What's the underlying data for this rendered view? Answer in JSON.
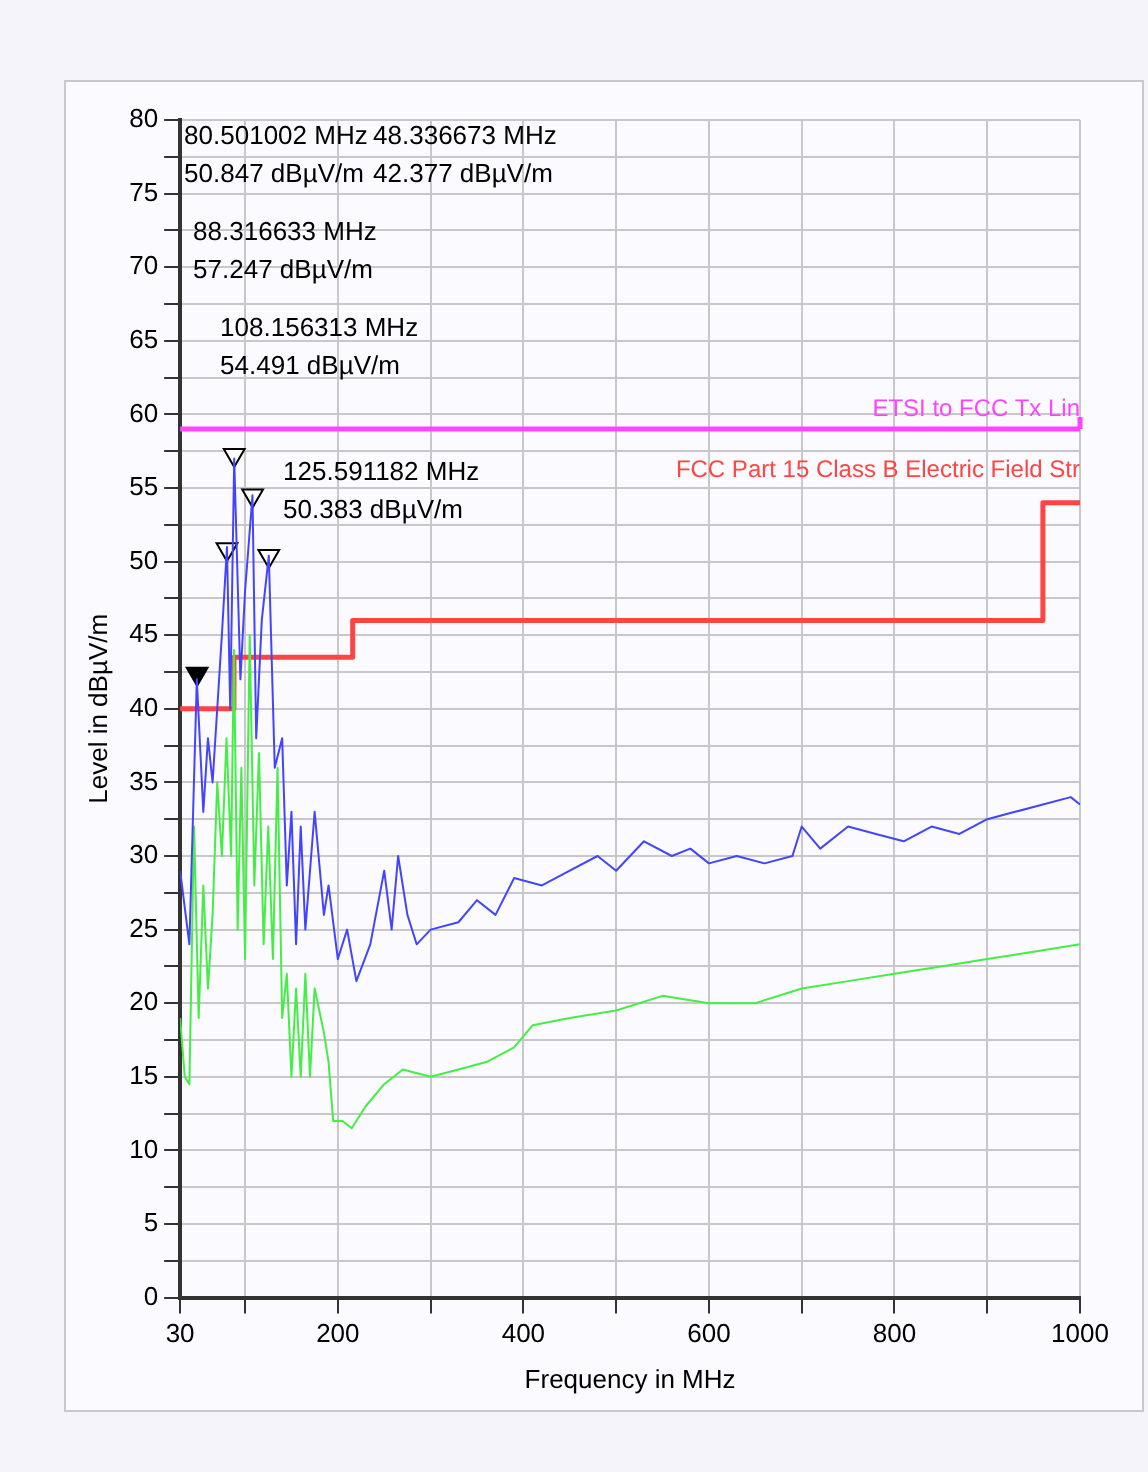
{
  "chart_data": {
    "type": "line",
    "xlabel": "Frequency in MHz",
    "ylabel": "Level in dBµV/m",
    "xlim": [
      30,
      1000
    ],
    "xticks": [
      30,
      {
        "value": 100,
        "label": null
      },
      200,
      {
        "value": 300,
        "label": null
      },
      400,
      {
        "value": 500,
        "label": null
      },
      600,
      {
        "value": 700,
        "label": null
      },
      800,
      {
        "value": 900,
        "label": null
      },
      1000
    ],
    "ylim": [
      0,
      80
    ],
    "yticks": [
      0,
      {
        "value": 2.5,
        "label": null
      },
      5,
      {
        "value": 7.5,
        "label": null
      },
      10,
      {
        "value": 12.5,
        "label": null
      },
      15,
      {
        "value": 17.5,
        "label": null
      },
      20,
      {
        "value": 22.5,
        "label": null
      },
      25,
      {
        "value": 27.5,
        "label": null
      },
      30,
      {
        "value": 32.5,
        "label": null
      },
      35,
      {
        "value": 37.5,
        "label": null
      },
      40,
      {
        "value": 42.5,
        "label": null
      },
      45,
      {
        "value": 47.5,
        "label": null
      },
      50,
      {
        "value": 52.5,
        "label": null
      },
      55,
      {
        "value": 57.5,
        "label": null
      },
      60,
      {
        "value": 62.5,
        "label": null
      },
      65,
      {
        "value": 67.5,
        "label": null
      },
      70,
      {
        "value": 72.5,
        "label": null
      },
      75,
      {
        "value": 77.5,
        "label": null
      },
      80
    ],
    "grid": true,
    "legend": false,
    "series": [
      {
        "color": "#4444ff",
        "x": [
          30,
          40,
          48,
          55,
          60,
          65,
          75,
          80.5,
          84,
          88.3,
          95,
          100,
          108,
          112,
          118,
          125.6,
          132,
          140,
          145,
          150,
          155,
          160,
          165,
          175,
          185,
          190,
          200,
          210,
          220,
          235,
          250,
          258,
          265,
          275,
          285,
          300,
          330,
          350,
          370,
          390,
          420,
          450,
          480,
          500,
          530,
          560,
          580,
          600,
          630,
          660,
          690,
          700,
          720,
          750,
          780,
          810,
          840,
          870,
          900,
          930,
          960,
          990,
          1000
        ],
        "values": [
          29,
          24,
          42,
          33,
          38,
          35,
          45,
          51,
          40,
          57,
          42,
          48,
          54.5,
          38,
          46,
          50.4,
          36,
          38,
          28,
          33,
          24,
          32,
          25,
          33,
          26,
          28,
          23,
          25,
          21.5,
          24,
          29,
          25,
          30,
          26,
          24,
          25,
          25.5,
          27,
          26,
          28.5,
          28,
          29,
          30,
          29,
          31,
          30,
          30.5,
          29.5,
          30,
          29.5,
          30,
          32,
          30.5,
          32,
          31.5,
          31,
          32,
          31.5,
          32.5,
          33,
          33.5,
          34,
          33.5
        ]
      },
      {
        "color": "#44ee44",
        "x": [
          30,
          35,
          40,
          45,
          50,
          55,
          60,
          65,
          70,
          75,
          80,
          85,
          88,
          92,
          96,
          100,
          105,
          110,
          115,
          120,
          125,
          130,
          135,
          140,
          145,
          150,
          155,
          160,
          165,
          170,
          175,
          185,
          190,
          195,
          205,
          215,
          230,
          250,
          270,
          300,
          330,
          360,
          390,
          410,
          450,
          500,
          550,
          600,
          650,
          700,
          750,
          800,
          850,
          900,
          950,
          1000
        ],
        "values": [
          19,
          15,
          14.5,
          32,
          19,
          28,
          21,
          26,
          35,
          30,
          38,
          30,
          44,
          25,
          36,
          23,
          45,
          28,
          37,
          24,
          32,
          23,
          36,
          19,
          22,
          15,
          21,
          15,
          22,
          15,
          21,
          18,
          16,
          12,
          12,
          11.5,
          13,
          14.5,
          15.5,
          15,
          15.5,
          16,
          17,
          18.5,
          19,
          19.5,
          20.5,
          20,
          20,
          21,
          21.5,
          22,
          22.5,
          23,
          23.5,
          24
        ]
      },
      {
        "type": "step",
        "name": "FCC Part 15 Class B Electric Field Str",
        "color": "#ff4444",
        "x": [
          30,
          88,
          216,
          960,
          1000
        ],
        "values": [
          40,
          43.5,
          46,
          54,
          54
        ]
      },
      {
        "type": "scatter",
        "marker": "triangle",
        "color": "#000000",
        "colors": [
          "#000000",
          "#ffffff",
          "#ffffff",
          "#ffffff",
          "#ffffff"
        ],
        "x": [
          48.336673,
          80.501002,
          88.316633,
          108.156313,
          125.591182
        ],
        "values": [
          42.377,
          50.847,
          57.247,
          54.491,
          50.383
        ]
      }
    ],
    "ref_lines": [
      {
        "axis": "y",
        "value": 59,
        "label": "ETSI to FCC Tx Lin",
        "color": "#ff44ff"
      }
    ],
    "annotations": [
      "80.501002 MHz\n50.847 dBµV/m",
      "48.336673 MHz\n42.377 dBµV/m",
      "88.316633 MHz\n57.247 dBµV/m",
      "108.156313 MHz\n54.491 dBµV/m",
      "125.591182 MHz\n50.383 dBµV/m"
    ]
  }
}
